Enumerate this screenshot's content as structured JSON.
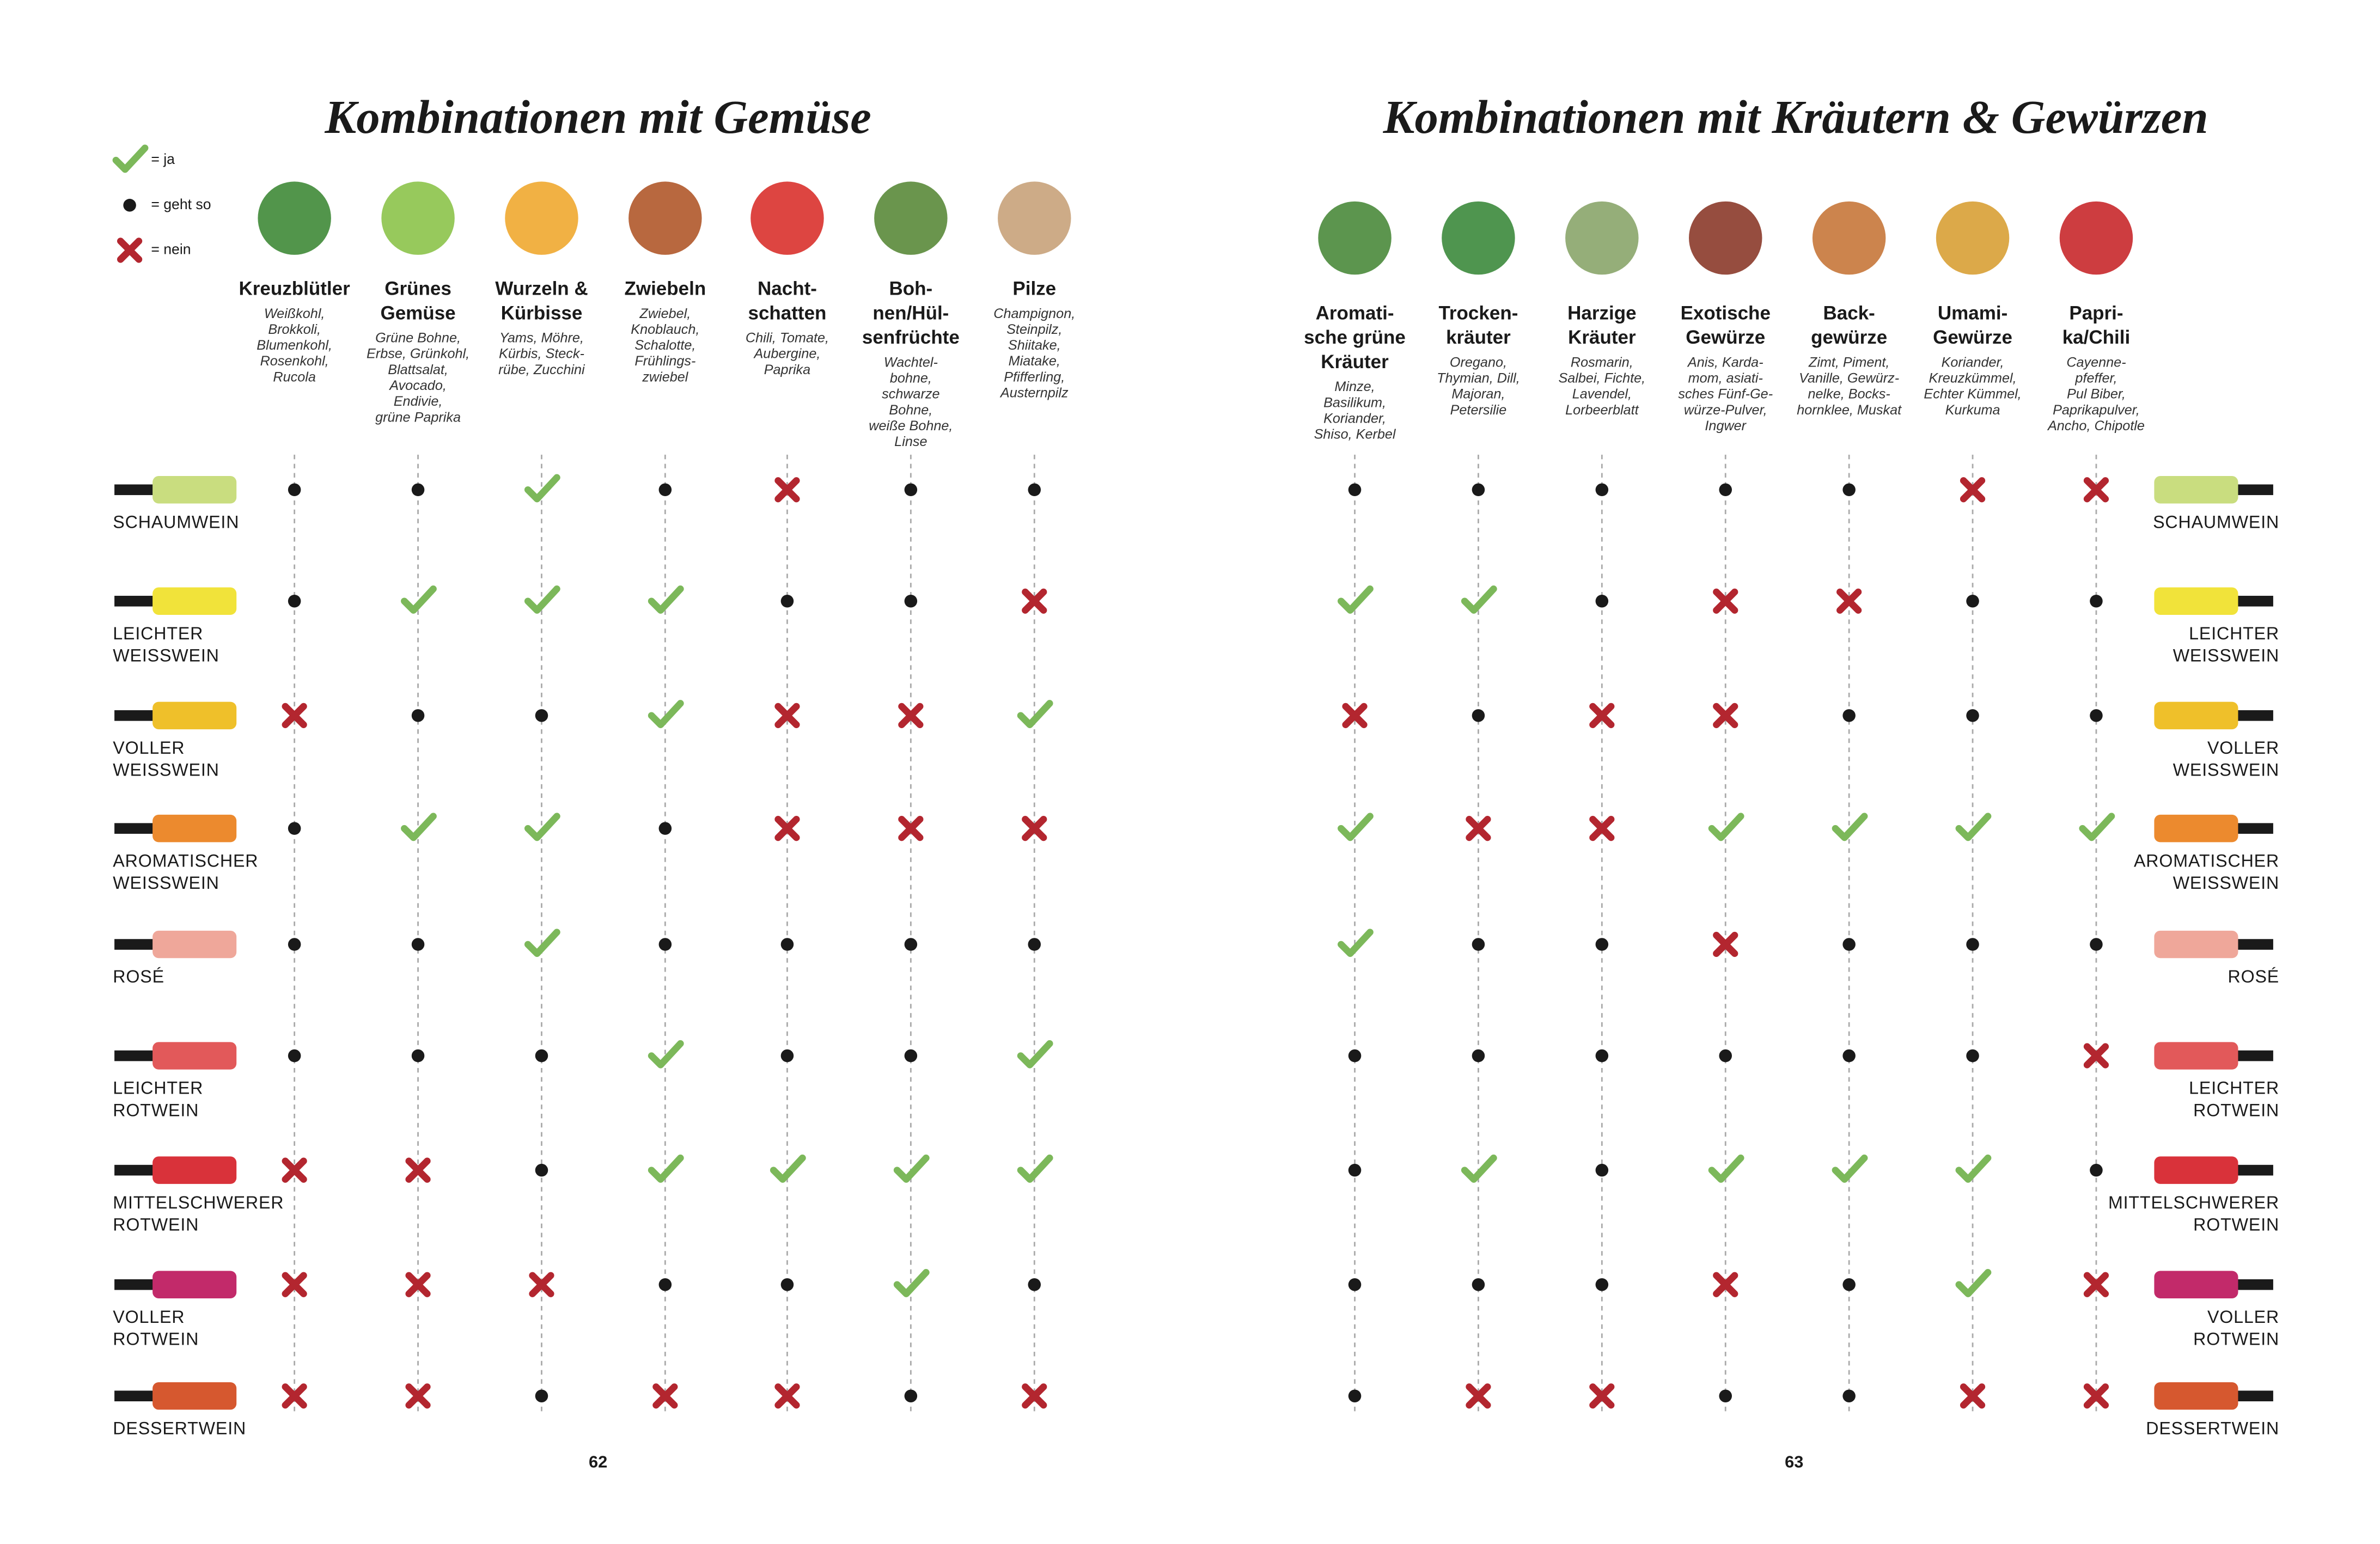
{
  "legend": [
    {
      "symbol": "ja",
      "label": "= ja"
    },
    {
      "symbol": "geht so",
      "label": "= geht so"
    },
    {
      "symbol": "nein",
      "label": "= nein"
    }
  ],
  "pages": [
    {
      "title": "Kombinationen mit Gemüse",
      "page_number": "62",
      "columns": [
        {
          "name": [
            "Kreuzblütler"
          ],
          "examples": [
            "Weißkohl,",
            "Brokkoli,",
            "Blumenkohl,",
            "Rosenkohl,",
            "Rucola"
          ]
        },
        {
          "name": [
            "Grünes",
            "Gemüse"
          ],
          "examples": [
            "Grüne Bohne,",
            "Erbse, Grünkohl,",
            "Blattsalat,",
            "Avocado,",
            "Endivie,",
            "grüne Paprika"
          ]
        },
        {
          "name": [
            "Wurzeln &",
            "Kürbisse"
          ],
          "examples": [
            "Yams, Möhre,",
            "Kürbis, Steck-",
            "rübe, Zucchini"
          ]
        },
        {
          "name": [
            "Zwiebeln"
          ],
          "examples": [
            "Zwiebel,",
            "Knoblauch,",
            "Schalotte,",
            "Frühlings-",
            "zwiebel"
          ]
        },
        {
          "name": [
            "Nacht-",
            "schatten"
          ],
          "examples": [
            "Chili, Tomate,",
            "Aubergine,",
            "Paprika"
          ]
        },
        {
          "name": [
            "Boh-",
            "nen/Hül-",
            "senfrüchte"
          ],
          "examples": [
            "Wachtel-",
            "bohne,",
            "schwarze",
            "Bohne,",
            "weiße Bohne,",
            "Linse"
          ]
        },
        {
          "name": [
            "Pilze"
          ],
          "examples": [
            "Champignon,",
            "Steinpilz,",
            "Shiitake,",
            "Miatake,",
            "Pfifferling,",
            "Austernpilz"
          ]
        }
      ],
      "rows": [
        {
          "wine": [
            "SCHAUMWEIN"
          ],
          "ratings": [
            "geht so",
            "geht so",
            "ja",
            "geht so",
            "nein",
            "geht so",
            "geht so"
          ]
        },
        {
          "wine": [
            "LEICHTER",
            "WEISSWEIN"
          ],
          "ratings": [
            "geht so",
            "ja",
            "ja",
            "ja",
            "geht so",
            "geht so",
            "nein"
          ]
        },
        {
          "wine": [
            "VOLLER",
            "WEISSWEIN"
          ],
          "ratings": [
            "nein",
            "geht so",
            "geht so",
            "ja",
            "nein",
            "nein",
            "ja"
          ]
        },
        {
          "wine": [
            "AROMATISCHER",
            "WEISSWEIN"
          ],
          "ratings": [
            "geht so",
            "ja",
            "ja",
            "geht so",
            "nein",
            "nein",
            "nein"
          ]
        },
        {
          "wine": [
            "ROSÉ"
          ],
          "ratings": [
            "geht so",
            "geht so",
            "ja",
            "geht so",
            "geht so",
            "geht so",
            "geht so"
          ]
        },
        {
          "wine": [
            "LEICHTER",
            "ROTWEIN"
          ],
          "ratings": [
            "geht so",
            "geht so",
            "geht so",
            "ja",
            "geht so",
            "geht so",
            "ja"
          ]
        },
        {
          "wine": [
            "MITTELSCHWERER",
            "ROTWEIN"
          ],
          "ratings": [
            "nein",
            "nein",
            "geht so",
            "ja",
            "ja",
            "ja",
            "ja"
          ]
        },
        {
          "wine": [
            "VOLLER",
            "ROTWEIN"
          ],
          "ratings": [
            "nein",
            "nein",
            "nein",
            "geht so",
            "geht so",
            "ja",
            "geht so"
          ]
        },
        {
          "wine": [
            "DESSERTWEIN"
          ],
          "ratings": [
            "nein",
            "nein",
            "geht so",
            "nein",
            "nein",
            "geht so",
            "nein"
          ]
        }
      ]
    },
    {
      "title": "Kombinationen mit Kräutern & Gewürzen",
      "page_number": "63",
      "columns": [
        {
          "name": [
            "Aromati-",
            "sche grüne",
            "Kräuter"
          ],
          "examples": [
            "Minze,",
            "Basilikum,",
            "Koriander,",
            "Shiso, Kerbel"
          ]
        },
        {
          "name": [
            "Trocken-",
            "kräuter"
          ],
          "examples": [
            "Oregano,",
            "Thymian, Dill,",
            "Majoran,",
            "Petersilie"
          ]
        },
        {
          "name": [
            "Harzige",
            "Kräuter"
          ],
          "examples": [
            "Rosmarin,",
            "Salbei, Fichte,",
            "Lavendel,",
            "Lorbeerblatt"
          ]
        },
        {
          "name": [
            "Exotische",
            "Gewürze"
          ],
          "examples": [
            "Anis, Karda-",
            "mom, asiati-",
            "sches Fünf-Ge-",
            "würze-Pulver,",
            "Ingwer"
          ]
        },
        {
          "name": [
            "Back-",
            "gewürze"
          ],
          "examples": [
            "Zimt, Piment,",
            "Vanille, Gewürz-",
            "nelke, Bocks-",
            "hornklee, Muskat"
          ]
        },
        {
          "name": [
            "Umami-",
            "Gewürze"
          ],
          "examples": [
            "Koriander,",
            "Kreuzkümmel,",
            "Echter Kümmel,",
            "Kurkuma"
          ]
        },
        {
          "name": [
            "Papri-",
            "ka/Chili"
          ],
          "examples": [
            "Cayenne-",
            "pfeffer,",
            "Pul Biber,",
            "Paprikapulver,",
            "Ancho, Chipotle"
          ]
        }
      ],
      "rows": [
        {
          "wine": [
            "SCHAUMWEIN"
          ],
          "ratings": [
            "geht so",
            "geht so",
            "geht so",
            "geht so",
            "geht so",
            "nein",
            "nein"
          ]
        },
        {
          "wine": [
            "LEICHTER",
            "WEISSWEIN"
          ],
          "ratings": [
            "ja",
            "ja",
            "geht so",
            "nein",
            "nein",
            "geht so",
            "geht so"
          ]
        },
        {
          "wine": [
            "VOLLER",
            "WEISSWEIN"
          ],
          "ratings": [
            "nein",
            "geht so",
            "nein",
            "nein",
            "geht so",
            "geht so",
            "geht so"
          ]
        },
        {
          "wine": [
            "AROMATISCHER",
            "WEISSWEIN"
          ],
          "ratings": [
            "ja",
            "nein",
            "nein",
            "ja",
            "ja",
            "ja",
            "ja"
          ]
        },
        {
          "wine": [
            "ROSÉ"
          ],
          "ratings": [
            "ja",
            "geht so",
            "geht so",
            "nein",
            "geht so",
            "geht so",
            "geht so"
          ]
        },
        {
          "wine": [
            "LEICHTER",
            "ROTWEIN"
          ],
          "ratings": [
            "geht so",
            "geht so",
            "geht so",
            "geht so",
            "geht so",
            "geht so",
            "nein"
          ]
        },
        {
          "wine": [
            "MITTELSCHWERER",
            "ROTWEIN"
          ],
          "ratings": [
            "geht so",
            "ja",
            "geht so",
            "ja",
            "ja",
            "ja",
            "geht so"
          ]
        },
        {
          "wine": [
            "VOLLER",
            "ROTWEIN"
          ],
          "ratings": [
            "geht so",
            "geht so",
            "geht so",
            "nein",
            "geht so",
            "ja",
            "nein"
          ]
        },
        {
          "wine": [
            "DESSERTWEIN"
          ],
          "ratings": [
            "geht so",
            "nein",
            "nein",
            "geht so",
            "geht so",
            "nein",
            "nein"
          ]
        }
      ]
    }
  ]
}
